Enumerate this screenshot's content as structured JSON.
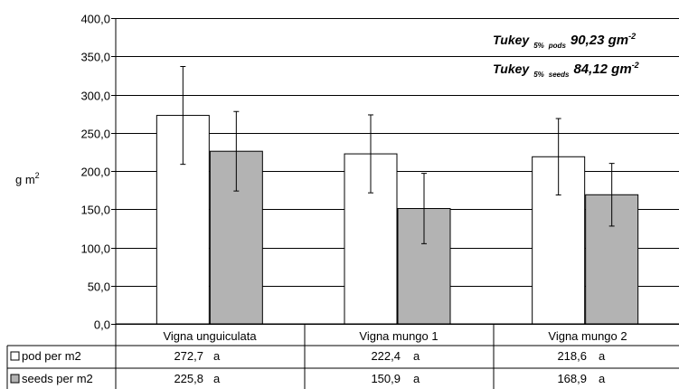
{
  "chart_data": {
    "type": "bar",
    "ylabel": "g m",
    "ylabel_superscript": "2",
    "ylim": [
      0,
      400
    ],
    "yticks": [
      "0,0",
      "50,0",
      "100,0",
      "150,0",
      "200,0",
      "250,0",
      "300,0",
      "350,0",
      "400,0"
    ],
    "grid": true,
    "categories": [
      "Vigna unguiculata",
      "Vigna mungo 1",
      "Vigna mungo 2"
    ],
    "series": [
      {
        "name": "pod per m2",
        "color": "#ffffff",
        "values": [
          272.7,
          222.4,
          218.6
        ],
        "errors": [
          64,
          51,
          50
        ],
        "value_labels": [
          "272,7",
          "222,4",
          "218,6"
        ],
        "letters": [
          "a",
          "a",
          "a"
        ]
      },
      {
        "name": "seeds per m2",
        "color": "#b3b3b3",
        "values": [
          225.8,
          150.9,
          168.9
        ],
        "errors": [
          52,
          46,
          41
        ],
        "value_labels": [
          "225,8",
          "150,9",
          "168,9"
        ],
        "letters": [
          "a",
          "a",
          "a"
        ]
      }
    ],
    "annotations": [
      {
        "label": "Tukey",
        "sub1": "5%",
        "sub2": "pods",
        "value": "90,23 gm",
        "sup": "-2"
      },
      {
        "label": "Tukey",
        "sub1": "5%",
        "sub2": "seeds",
        "value": "84,12 gm",
        "sup": "-2"
      }
    ]
  }
}
